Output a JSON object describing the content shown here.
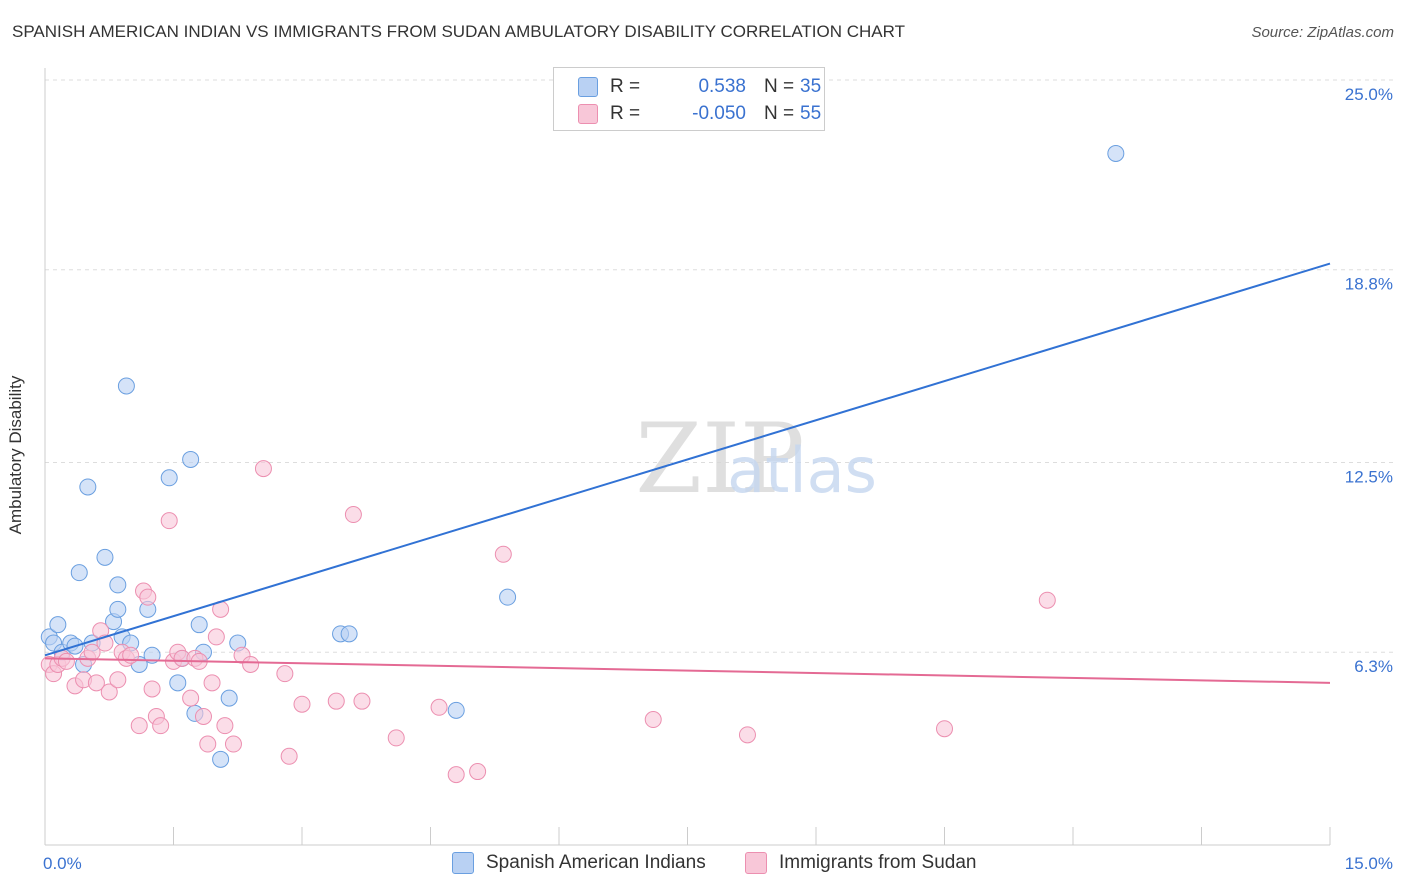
{
  "chart_data": {
    "type": "scatter",
    "title": "SPANISH AMERICAN INDIAN VS IMMIGRANTS FROM SUDAN AMBULATORY DISABILITY CORRELATION CHART",
    "source": "Source: ZipAtlas.com",
    "xlabel": "",
    "ylabel": "Ambulatory Disability",
    "xlim": [
      0,
      15
    ],
    "ylim": [
      0,
      25.0
    ],
    "x_tick_labels": {
      "min": "0.0%",
      "max": "15.0%"
    },
    "y_ticks": [
      6.3,
      12.5,
      18.8,
      25.0
    ],
    "y_tick_labels": [
      "6.3%",
      "12.5%",
      "18.8%",
      "25.0%"
    ],
    "grid": true,
    "watermark": "ZIPatlas",
    "series": [
      {
        "name": "Spanish American Indians",
        "color": "#6a9fe0",
        "fill": "#b9d1f3",
        "line_color": "#3172d4",
        "R": "0.538",
        "N": "35",
        "trend": {
          "x": [
            0,
            15
          ],
          "y": [
            6.2,
            19.0
          ]
        },
        "points": [
          [
            0.05,
            6.8
          ],
          [
            0.1,
            6.6
          ],
          [
            0.15,
            7.2
          ],
          [
            0.2,
            6.3
          ],
          [
            0.3,
            6.6
          ],
          [
            0.35,
            6.5
          ],
          [
            0.4,
            8.9
          ],
          [
            0.45,
            5.9
          ],
          [
            0.5,
            11.7
          ],
          [
            0.55,
            6.6
          ],
          [
            0.7,
            9.4
          ],
          [
            0.8,
            7.3
          ],
          [
            0.85,
            7.7
          ],
          [
            0.85,
            8.5
          ],
          [
            0.9,
            6.8
          ],
          [
            0.95,
            15.0
          ],
          [
            1.0,
            6.6
          ],
          [
            1.1,
            5.9
          ],
          [
            1.2,
            7.7
          ],
          [
            1.25,
            6.2
          ],
          [
            1.45,
            12.0
          ],
          [
            1.55,
            5.3
          ],
          [
            1.6,
            6.1
          ],
          [
            1.7,
            12.6
          ],
          [
            1.75,
            4.3
          ],
          [
            1.8,
            7.2
          ],
          [
            1.85,
            6.3
          ],
          [
            2.05,
            2.8
          ],
          [
            2.15,
            4.8
          ],
          [
            2.25,
            6.6
          ],
          [
            3.45,
            6.9
          ],
          [
            3.55,
            6.9
          ],
          [
            4.8,
            4.4
          ],
          [
            5.4,
            8.1
          ],
          [
            12.5,
            22.6
          ]
        ]
      },
      {
        "name": "Immigrants from Sudan",
        "color": "#ec8fb0",
        "fill": "#f8c7d8",
        "line_color": "#e46a94",
        "R": "-0.050",
        "N": "55",
        "trend": {
          "x": [
            0,
            15
          ],
          "y": [
            6.1,
            5.3
          ]
        },
        "points": [
          [
            0.05,
            5.9
          ],
          [
            0.1,
            5.6
          ],
          [
            0.15,
            5.9
          ],
          [
            0.2,
            6.1
          ],
          [
            0.25,
            6.0
          ],
          [
            0.35,
            5.2
          ],
          [
            0.45,
            5.4
          ],
          [
            0.5,
            6.1
          ],
          [
            0.55,
            6.3
          ],
          [
            0.6,
            5.3
          ],
          [
            0.65,
            7.0
          ],
          [
            0.7,
            6.6
          ],
          [
            0.75,
            5.0
          ],
          [
            0.85,
            5.4
          ],
          [
            0.9,
            6.3
          ],
          [
            0.95,
            6.1
          ],
          [
            1.0,
            6.2
          ],
          [
            1.1,
            3.9
          ],
          [
            1.15,
            8.3
          ],
          [
            1.2,
            8.1
          ],
          [
            1.25,
            5.1
          ],
          [
            1.3,
            4.2
          ],
          [
            1.35,
            3.9
          ],
          [
            1.45,
            10.6
          ],
          [
            1.5,
            6.0
          ],
          [
            1.55,
            6.3
          ],
          [
            1.6,
            6.1
          ],
          [
            1.7,
            4.8
          ],
          [
            1.75,
            6.1
          ],
          [
            1.8,
            6.0
          ],
          [
            1.85,
            4.2
          ],
          [
            1.9,
            3.3
          ],
          [
            1.95,
            5.3
          ],
          [
            2.0,
            6.8
          ],
          [
            2.05,
            7.7
          ],
          [
            2.1,
            3.9
          ],
          [
            2.2,
            3.3
          ],
          [
            2.3,
            6.2
          ],
          [
            2.4,
            5.9
          ],
          [
            2.55,
            12.3
          ],
          [
            2.8,
            5.6
          ],
          [
            2.85,
            2.9
          ],
          [
            3.0,
            4.6
          ],
          [
            3.4,
            4.7
          ],
          [
            3.6,
            10.8
          ],
          [
            3.7,
            4.7
          ],
          [
            4.1,
            3.5
          ],
          [
            4.6,
            4.5
          ],
          [
            4.8,
            2.3
          ],
          [
            5.05,
            2.4
          ],
          [
            5.35,
            9.5
          ],
          [
            7.1,
            4.1
          ],
          [
            8.2,
            3.6
          ],
          [
            10.5,
            3.8
          ],
          [
            11.7,
            8.0
          ]
        ]
      }
    ]
  }
}
